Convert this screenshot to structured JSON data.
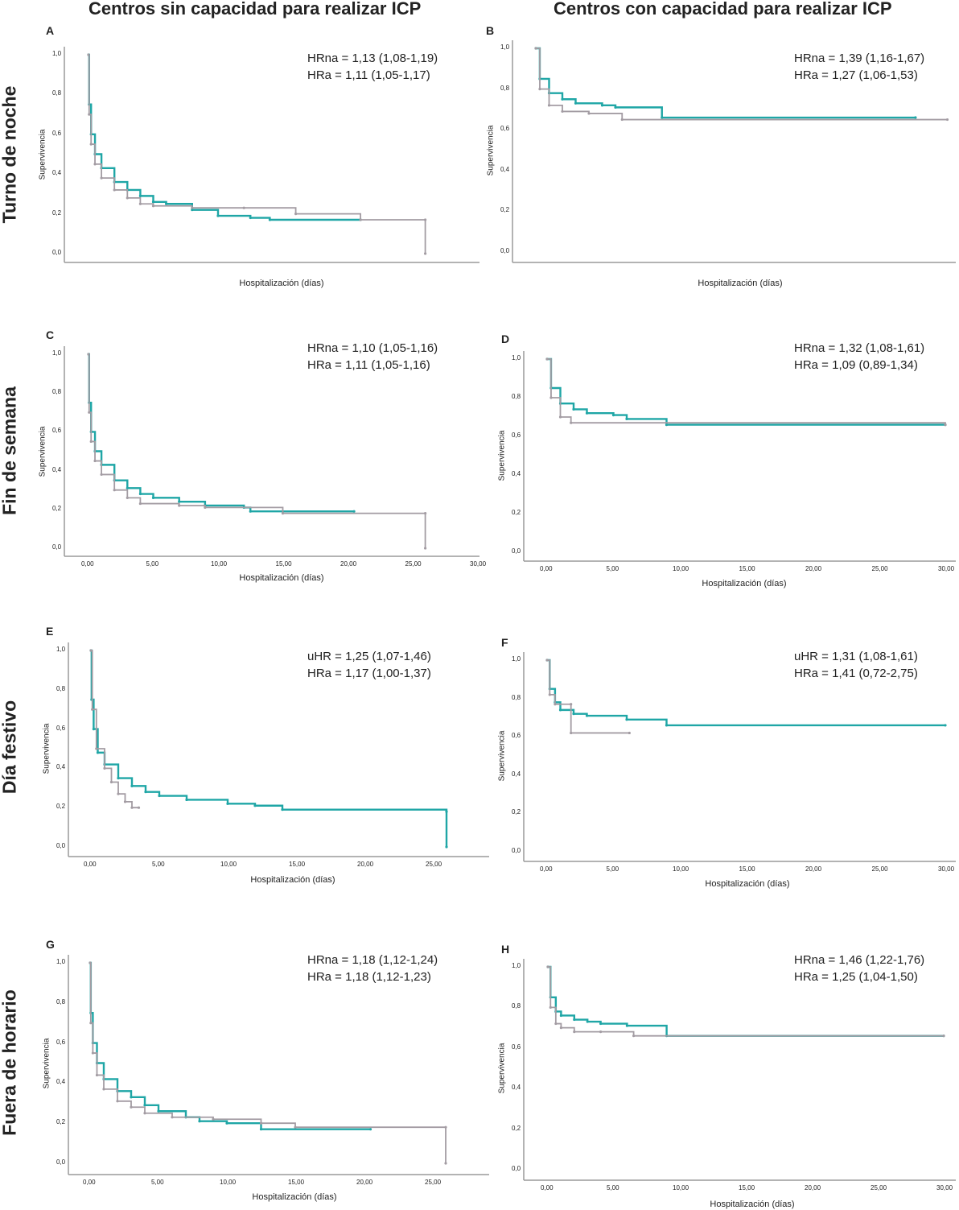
{
  "column_titles": [
    "Centros sin capacidad para realizar ICP",
    "Centros con capacidad para realizar ICP"
  ],
  "row_labels": [
    "Turno de noche",
    "Fin de semana",
    "Día festivo",
    "Fuera de horario"
  ],
  "colors": {
    "teal": "#1fa6a6",
    "gray": "#a39ca3",
    "axis": "#9a9a9a"
  },
  "chart_data": [
    {
      "type": "line",
      "panel": "A",
      "ylabel": "Supervivencia",
      "xlabel": "Hospitalización (días)",
      "yticks": [
        "0,0",
        "0,2",
        "0,4",
        "0,6",
        "0,8",
        "1,0"
      ],
      "xticks": [],
      "ylim": [
        0,
        1
      ],
      "xlim": [
        0,
        30
      ],
      "annotation": [
        "HRna = 1,13 (1,08-1,19)",
        "HRa = 1,11 (1,05-1,17)"
      ],
      "series": [
        {
          "color": "teal",
          "points": [
            [
              0,
              1
            ],
            [
              0.05,
              0.75
            ],
            [
              0.2,
              0.6
            ],
            [
              0.5,
              0.5
            ],
            [
              1,
              0.43
            ],
            [
              2,
              0.36
            ],
            [
              3,
              0.32
            ],
            [
              4,
              0.29
            ],
            [
              5,
              0.26
            ],
            [
              6,
              0.25
            ],
            [
              8,
              0.22
            ],
            [
              10,
              0.19
            ],
            [
              12.5,
              0.18
            ],
            [
              14,
              0.17
            ],
            [
              21,
              0.17
            ]
          ]
        },
        {
          "color": "gray",
          "points": [
            [
              0,
              1
            ],
            [
              0.05,
              0.7
            ],
            [
              0.2,
              0.55
            ],
            [
              0.5,
              0.45
            ],
            [
              1,
              0.38
            ],
            [
              2,
              0.32
            ],
            [
              3,
              0.28
            ],
            [
              4,
              0.25
            ],
            [
              5,
              0.24
            ],
            [
              8,
              0.23
            ],
            [
              12,
              0.23
            ],
            [
              16,
              0.2
            ],
            [
              21,
              0.17
            ],
            [
              26,
              0.17
            ],
            [
              26,
              0
            ]
          ]
        }
      ]
    },
    {
      "type": "line",
      "panel": "B",
      "ylabel": "Supervivencia",
      "xlabel": "Hospitalización (días)",
      "yticks": [
        "0,0",
        "0,2",
        "0,4",
        "0,6",
        "0,8",
        "1,0"
      ],
      "xticks": [],
      "ylim": [
        0,
        1
      ],
      "xlim": [
        0,
        30
      ],
      "annotation": [
        "HRna = 1,39 (1,16-1,67)",
        "HRa = 1,27 (1,06-1,53)"
      ],
      "series": [
        {
          "color": "teal",
          "points": [
            [
              0,
              1
            ],
            [
              0.3,
              0.85
            ],
            [
              1,
              0.78
            ],
            [
              2,
              0.75
            ],
            [
              3,
              0.73
            ],
            [
              5,
              0.72
            ],
            [
              6,
              0.71
            ],
            [
              9.5,
              0.66
            ],
            [
              28.6,
              0.66
            ]
          ]
        },
        {
          "color": "gray",
          "points": [
            [
              0,
              1
            ],
            [
              0.3,
              0.8
            ],
            [
              1,
              0.72
            ],
            [
              2,
              0.69
            ],
            [
              4,
              0.68
            ],
            [
              6.5,
              0.65
            ],
            [
              31,
              0.65
            ]
          ]
        }
      ]
    },
    {
      "type": "line",
      "panel": "C",
      "ylabel": "Supervivencia",
      "xlabel": "Hospitalización (días)",
      "yticks": [
        "0,0",
        "0,2",
        "0,4",
        "0,6",
        "0,8",
        "1,0"
      ],
      "xticks": [
        "0,00",
        "5,00",
        "10,00",
        "15,00",
        "20,00",
        "25,00",
        "30,00"
      ],
      "ylim": [
        0,
        1
      ],
      "xlim": [
        0,
        30
      ],
      "annotation": [
        "HRna = 1,10 (1,05-1,16)",
        "HRa = 1,11 (1,05-1,16)"
      ],
      "series": [
        {
          "color": "teal",
          "points": [
            [
              0,
              1
            ],
            [
              0.05,
              0.75
            ],
            [
              0.2,
              0.6
            ],
            [
              0.5,
              0.5
            ],
            [
              1,
              0.43
            ],
            [
              2,
              0.35
            ],
            [
              3,
              0.31
            ],
            [
              4,
              0.28
            ],
            [
              5,
              0.26
            ],
            [
              7,
              0.24
            ],
            [
              9,
              0.22
            ],
            [
              12,
              0.21
            ],
            [
              12.5,
              0.19
            ],
            [
              20.5,
              0.19
            ]
          ]
        },
        {
          "color": "gray",
          "points": [
            [
              0,
              1
            ],
            [
              0.05,
              0.7
            ],
            [
              0.2,
              0.55
            ],
            [
              0.5,
              0.45
            ],
            [
              1,
              0.38
            ],
            [
              2,
              0.3
            ],
            [
              3,
              0.26
            ],
            [
              4,
              0.23
            ],
            [
              7,
              0.22
            ],
            [
              9,
              0.21
            ],
            [
              15,
              0.18
            ],
            [
              26,
              0.18
            ],
            [
              26,
              0
            ]
          ]
        }
      ]
    },
    {
      "type": "line",
      "panel": "D",
      "ylabel": "Supervivencia",
      "xlabel": "Hospitalización (días)",
      "yticks": [
        "0,0",
        "0,2",
        "0,4",
        "0,6",
        "0,8",
        "1,0"
      ],
      "xticks": [
        "0,00",
        "5,00",
        "10,00",
        "15,00",
        "20,00",
        "25,00",
        "30,00"
      ],
      "ylim": [
        0,
        1
      ],
      "xlim": [
        0,
        30
      ],
      "annotation": [
        "HRna = 1,32 (1,08-1,61)",
        "HRa = 1,09 (0,89-1,34)"
      ],
      "series": [
        {
          "color": "teal",
          "points": [
            [
              0,
              1
            ],
            [
              0.3,
              0.85
            ],
            [
              1,
              0.77
            ],
            [
              2,
              0.74
            ],
            [
              3,
              0.72
            ],
            [
              5,
              0.71
            ],
            [
              6,
              0.69
            ],
            [
              9,
              0.66
            ],
            [
              30,
              0.66
            ]
          ]
        },
        {
          "color": "gray",
          "points": [
            [
              0,
              1
            ],
            [
              0.3,
              0.8
            ],
            [
              1,
              0.7
            ],
            [
              1.8,
              0.67
            ],
            [
              30,
              0.66
            ]
          ]
        }
      ]
    },
    {
      "type": "line",
      "panel": "E",
      "ylabel": "Supervivencia",
      "xlabel": "Hospitalización (días)",
      "yticks": [
        "0,0",
        "0,2",
        "0,4",
        "0,6",
        "0,8",
        "1,0"
      ],
      "xticks": [
        "0,00",
        "5,00",
        "10,00",
        "15,00",
        "20,00",
        "25,00"
      ],
      "ylim": [
        0,
        1
      ],
      "xlim": [
        0,
        30
      ],
      "annotation": [
        "uHR = 1,25 (1,07-1,46)",
        "HRa = 1,17 (1,00-1,37)"
      ],
      "series": [
        {
          "color": "teal",
          "points": [
            [
              0,
              1
            ],
            [
              0.05,
              0.75
            ],
            [
              0.2,
              0.6
            ],
            [
              0.5,
              0.48
            ],
            [
              1,
              0.42
            ],
            [
              2,
              0.35
            ],
            [
              3,
              0.31
            ],
            [
              4,
              0.28
            ],
            [
              5,
              0.26
            ],
            [
              7,
              0.24
            ],
            [
              10,
              0.22
            ],
            [
              12,
              0.21
            ],
            [
              14,
              0.19
            ],
            [
              26,
              0.18
            ],
            [
              26,
              0
            ]
          ]
        },
        {
          "color": "gray",
          "points": [
            [
              0,
              1
            ],
            [
              0.1,
              0.7
            ],
            [
              0.4,
              0.5
            ],
            [
              1,
              0.4
            ],
            [
              1.5,
              0.33
            ],
            [
              2,
              0.27
            ],
            [
              2.5,
              0.23
            ],
            [
              3,
              0.2
            ],
            [
              3.5,
              0.2
            ]
          ]
        }
      ]
    },
    {
      "type": "line",
      "panel": "F",
      "ylabel": "Supervivencia",
      "xlabel": "Hospitalización (días)",
      "yticks": [
        "0,0",
        "0,2",
        "0,4",
        "0,6",
        "0,8",
        "1,0"
      ],
      "xticks": [
        "0,00",
        "5,00",
        "10,00",
        "15,00",
        "20,00",
        "25,00",
        "30,00"
      ],
      "ylim": [
        0,
        1
      ],
      "xlim": [
        0,
        30
      ],
      "annotation": [
        "uHR = 1,31 (1,08-1,61)",
        "HRa = 1,41 (0,72-2,75)"
      ],
      "series": [
        {
          "color": "teal",
          "points": [
            [
              0,
              1
            ],
            [
              0.2,
              0.85
            ],
            [
              0.6,
              0.78
            ],
            [
              1,
              0.74
            ],
            [
              2,
              0.72
            ],
            [
              3,
              0.71
            ],
            [
              6,
              0.69
            ],
            [
              9,
              0.66
            ],
            [
              30,
              0.66
            ]
          ]
        },
        {
          "color": "gray",
          "points": [
            [
              0,
              1
            ],
            [
              0.2,
              0.82
            ],
            [
              0.6,
              0.77
            ],
            [
              1.8,
              0.77
            ],
            [
              1.8,
              0.62
            ],
            [
              6.2,
              0.62
            ]
          ]
        }
      ]
    },
    {
      "type": "line",
      "panel": "G",
      "ylabel": "Supervivencia",
      "xlabel": "Hospitalización (días)",
      "yticks": [
        "0,0",
        "0,2",
        "0,4",
        "0,6",
        "0,8",
        "1,0"
      ],
      "xticks": [
        "0,00",
        "5,00",
        "10,00",
        "15,00",
        "20,00",
        "25,00"
      ],
      "ylim": [
        0,
        1
      ],
      "xlim": [
        0,
        30
      ],
      "annotation": [
        "HRna = 1,18 (1,12-1,24)",
        "HRa = 1,18 (1,12-1,23)"
      ],
      "series": [
        {
          "color": "teal",
          "points": [
            [
              0,
              1
            ],
            [
              0.05,
              0.75
            ],
            [
              0.2,
              0.6
            ],
            [
              0.5,
              0.5
            ],
            [
              1,
              0.42
            ],
            [
              2,
              0.36
            ],
            [
              3,
              0.33
            ],
            [
              4,
              0.29
            ],
            [
              5,
              0.26
            ],
            [
              7,
              0.23
            ],
            [
              8,
              0.21
            ],
            [
              10,
              0.2
            ],
            [
              12.5,
              0.17
            ],
            [
              20.5,
              0.17
            ]
          ]
        },
        {
          "color": "gray",
          "points": [
            [
              0,
              1
            ],
            [
              0.05,
              0.7
            ],
            [
              0.2,
              0.55
            ],
            [
              0.5,
              0.44
            ],
            [
              1,
              0.37
            ],
            [
              2,
              0.31
            ],
            [
              3,
              0.28
            ],
            [
              4,
              0.25
            ],
            [
              6,
              0.23
            ],
            [
              9,
              0.22
            ],
            [
              12.5,
              0.2
            ],
            [
              15,
              0.18
            ],
            [
              26,
              0.18
            ],
            [
              26,
              0
            ]
          ]
        }
      ]
    },
    {
      "type": "line",
      "panel": "H",
      "ylabel": "Supervivencia",
      "xlabel": "Hospitalización (días)",
      "yticks": [
        "0,0",
        "0,2",
        "0,4",
        "0,6",
        "0,8",
        "1,0"
      ],
      "xticks": [
        "0,00",
        "5,00",
        "10,00",
        "15,00",
        "20,00",
        "25,00",
        "30,00"
      ],
      "ylim": [
        0,
        1
      ],
      "xlim": [
        0,
        30
      ],
      "annotation": [
        "HRna = 1,46 (1,22-1,76)",
        "HRa = 1,25 (1,04-1,50)"
      ],
      "series": [
        {
          "color": "teal",
          "points": [
            [
              0,
              1
            ],
            [
              0.2,
              0.85
            ],
            [
              0.6,
              0.78
            ],
            [
              1,
              0.76
            ],
            [
              2,
              0.74
            ],
            [
              3,
              0.73
            ],
            [
              4,
              0.72
            ],
            [
              6,
              0.71
            ],
            [
              9,
              0.66
            ],
            [
              30,
              0.66
            ]
          ]
        },
        {
          "color": "gray",
          "points": [
            [
              0,
              1
            ],
            [
              0.2,
              0.8
            ],
            [
              0.6,
              0.72
            ],
            [
              1,
              0.7
            ],
            [
              2,
              0.68
            ],
            [
              4,
              0.68
            ],
            [
              6.5,
              0.66
            ],
            [
              30,
              0.66
            ]
          ]
        }
      ]
    }
  ]
}
